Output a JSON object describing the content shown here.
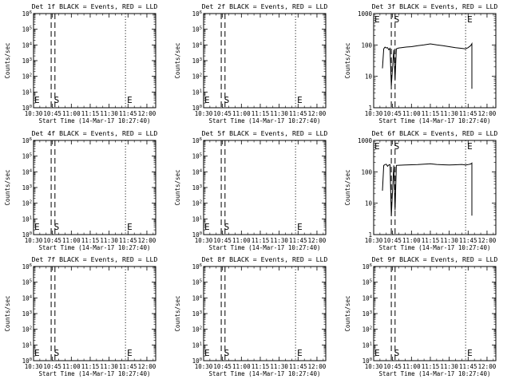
{
  "chart_data": [
    {
      "type": "line",
      "title": "Det 1f BLACK = Events, RED = LLD",
      "xlabel": "Start Time (14-Mar-17 10:27:40)",
      "ylabel": "Counts/sec",
      "yscale": "log",
      "ylim": [
        1,
        1000000
      ],
      "ytick_labels": [
        "10^0",
        "10^1",
        "10^2",
        "10^3",
        "10^4",
        "10^5",
        "10^6"
      ],
      "xlim": [
        "10:30",
        "12:07"
      ],
      "xtick_labels": [
        "10:30",
        "10:45",
        "11:00",
        "11:15",
        "11:30",
        "11:45",
        "12:00"
      ],
      "annotations": [
        "E",
        "S",
        "E"
      ],
      "markers": {
        "dashed": [
          "10:44",
          "10:47"
        ],
        "dotted": [
          "10:30",
          "11:43"
        ]
      },
      "series": []
    },
    {
      "type": "line",
      "title": "Det 2f BLACK = Events, RED = LLD",
      "xlabel": "Start Time (14-Mar-17 10:27:40)",
      "ylabel": "Counts/sec",
      "yscale": "log",
      "ylim": [
        1,
        1000000
      ],
      "ytick_labels": [
        "10^0",
        "10^1",
        "10^2",
        "10^3",
        "10^4",
        "10^5",
        "10^6"
      ],
      "xlim": [
        "10:30",
        "12:07"
      ],
      "xtick_labels": [
        "10:30",
        "10:45",
        "11:00",
        "11:15",
        "11:30",
        "11:45",
        "12:00"
      ],
      "annotations": [
        "E",
        "S",
        "E"
      ],
      "markers": {
        "dashed": [
          "10:44",
          "10:47"
        ],
        "dotted": [
          "10:30",
          "11:43"
        ]
      },
      "series": []
    },
    {
      "type": "line",
      "title": "Det 3f BLACK = Events, RED = LLD",
      "xlabel": "Start Time (14-Mar-17 10:27:40)",
      "ylabel": "Counts/sec",
      "yscale": "log",
      "ylim": [
        1,
        1000
      ],
      "ytick_labels": [
        "1",
        "10",
        "100",
        "1000"
      ],
      "xlim": [
        "10:30",
        "12:07"
      ],
      "xtick_labels": [
        "10:30",
        "10:45",
        "11:00",
        "11:15",
        "11:30",
        "11:45",
        "12:00"
      ],
      "annotations": [
        "E",
        "S",
        "E"
      ],
      "markers": {
        "dashed": [
          "10:44",
          "10:47"
        ],
        "dotted": [
          "10:30",
          "11:43"
        ]
      },
      "series": [
        {
          "x": [
            "10:37",
            "10:38",
            "10:39",
            "10:40",
            "10:41",
            "10:42",
            "10:43",
            "10:44",
            "10:46",
            "10:47",
            "10:48",
            "10:49",
            "10:50",
            "10:52",
            "10:55",
            "11:00",
            "11:05",
            "11:10",
            "11:15",
            "11:20",
            "11:25",
            "11:30",
            "11:35",
            "11:40",
            "11:43",
            "11:45",
            "11:47",
            "11:48",
            "11:48"
          ],
          "y": [
            18,
            75,
            85,
            80,
            82,
            70,
            78,
            5,
            70,
            8,
            75,
            78,
            80,
            82,
            85,
            88,
            95,
            100,
            108,
            100,
            95,
            88,
            82,
            78,
            75,
            82,
            95,
            110,
            4
          ]
        }
      ]
    },
    {
      "type": "line",
      "title": "Det 4f BLACK = Events, RED = LLD",
      "xlabel": "Start Time (14-Mar-17 10:27:40)",
      "ylabel": "Counts/sec",
      "yscale": "log",
      "ylim": [
        1,
        1000000
      ],
      "ytick_labels": [
        "10^0",
        "10^1",
        "10^2",
        "10^3",
        "10^4",
        "10^5",
        "10^6"
      ],
      "xlim": [
        "10:30",
        "12:07"
      ],
      "xtick_labels": [
        "10:30",
        "10:45",
        "11:00",
        "11:15",
        "11:30",
        "11:45",
        "12:00"
      ],
      "annotations": [
        "E",
        "S",
        "E"
      ],
      "markers": {
        "dashed": [
          "10:44",
          "10:47"
        ],
        "dotted": [
          "10:30",
          "11:43"
        ]
      },
      "series": []
    },
    {
      "type": "line",
      "title": "Det 5f BLACK = Events, RED = LLD",
      "xlabel": "Start Time (14-Mar-17 10:27:40)",
      "ylabel": "Counts/sec",
      "yscale": "log",
      "ylim": [
        1,
        1000000
      ],
      "ytick_labels": [
        "10^0",
        "10^1",
        "10^2",
        "10^3",
        "10^4",
        "10^5",
        "10^6"
      ],
      "xlim": [
        "10:30",
        "12:07"
      ],
      "xtick_labels": [
        "10:30",
        "10:45",
        "11:00",
        "11:15",
        "11:30",
        "11:45",
        "12:00"
      ],
      "annotations": [
        "E",
        "S",
        "E"
      ],
      "markers": {
        "dashed": [
          "10:44",
          "10:47"
        ],
        "dotted": [
          "10:30",
          "11:43"
        ]
      },
      "series": []
    },
    {
      "type": "line",
      "title": "Det 6f BLACK = Events, RED = LLD",
      "xlabel": "Start Time (14-Mar-17 10:27:40)",
      "ylabel": "Counts/sec",
      "yscale": "log",
      "ylim": [
        1,
        1000
      ],
      "ytick_labels": [
        "1",
        "10",
        "100",
        "1000"
      ],
      "xlim": [
        "10:30",
        "12:07"
      ],
      "xtick_labels": [
        "10:30",
        "10:45",
        "11:00",
        "11:15",
        "11:30",
        "11:45",
        "12:00"
      ],
      "annotations": [
        "E",
        "S",
        "E"
      ],
      "markers": {
        "dashed": [
          "10:44",
          "10:47"
        ],
        "dotted": [
          "10:30",
          "11:43"
        ]
      },
      "series": [
        {
          "x": [
            "10:37",
            "10:38",
            "10:39",
            "10:40",
            "10:41",
            "10:42",
            "10:43",
            "10:44",
            "10:46",
            "10:47",
            "10:48",
            "10:50",
            "10:55",
            "11:00",
            "11:05",
            "11:10",
            "11:15",
            "11:20",
            "11:25",
            "11:30",
            "11:35",
            "11:40",
            "11:43",
            "11:45",
            "11:47",
            "11:48",
            "11:48"
          ],
          "y": [
            25,
            160,
            170,
            175,
            150,
            165,
            170,
            4,
            160,
            6,
            160,
            162,
            165,
            168,
            170,
            175,
            180,
            172,
            168,
            165,
            168,
            172,
            165,
            170,
            178,
            190,
            4
          ]
        }
      ]
    },
    {
      "type": "line",
      "title": "Det 7f BLACK = Events, RED = LLD",
      "xlabel": "Start Time (14-Mar-17 10:27:40)",
      "ylabel": "Counts/sec",
      "yscale": "log",
      "ylim": [
        1,
        1000000
      ],
      "ytick_labels": [
        "10^0",
        "10^1",
        "10^2",
        "10^3",
        "10^4",
        "10^5",
        "10^6"
      ],
      "xlim": [
        "10:30",
        "12:07"
      ],
      "xtick_labels": [
        "10:30",
        "10:45",
        "11:00",
        "11:15",
        "11:30",
        "11:45",
        "12:00"
      ],
      "annotations": [
        "E",
        "S",
        "E"
      ],
      "markers": {
        "dashed": [
          "10:44",
          "10:47"
        ],
        "dotted": [
          "10:30",
          "11:43"
        ]
      },
      "series": []
    },
    {
      "type": "line",
      "title": "Det 8f BLACK = Events, RED = LLD",
      "xlabel": "Start Time (14-Mar-17 10:27:40)",
      "ylabel": "Counts/sec",
      "yscale": "log",
      "ylim": [
        1,
        1000000
      ],
      "ytick_labels": [
        "10^0",
        "10^1",
        "10^2",
        "10^3",
        "10^4",
        "10^5",
        "10^6"
      ],
      "xlim": [
        "10:30",
        "12:07"
      ],
      "xtick_labels": [
        "10:30",
        "10:45",
        "11:00",
        "11:15",
        "11:30",
        "11:45",
        "12:00"
      ],
      "annotations": [
        "E",
        "S",
        "E"
      ],
      "markers": {
        "dashed": [
          "10:44",
          "10:47"
        ],
        "dotted": [
          "10:30",
          "11:43"
        ]
      },
      "series": []
    },
    {
      "type": "line",
      "title": "Det 9f BLACK = Events, RED = LLD",
      "xlabel": "Start Time (14-Mar-17 10:27:40)",
      "ylabel": "Counts/sec",
      "yscale": "log",
      "ylim": [
        1,
        1000000
      ],
      "ytick_labels": [
        "10^0",
        "10^1",
        "10^2",
        "10^3",
        "10^4",
        "10^5",
        "10^6"
      ],
      "xlim": [
        "10:30",
        "12:07"
      ],
      "xtick_labels": [
        "10:30",
        "10:45",
        "11:00",
        "11:15",
        "11:30",
        "11:45",
        "12:00"
      ],
      "annotations": [
        "E",
        "S",
        "E"
      ],
      "markers": {
        "dashed": [
          "10:44",
          "10:47"
        ],
        "dotted": [
          "10:30",
          "11:43"
        ]
      },
      "series": []
    }
  ]
}
